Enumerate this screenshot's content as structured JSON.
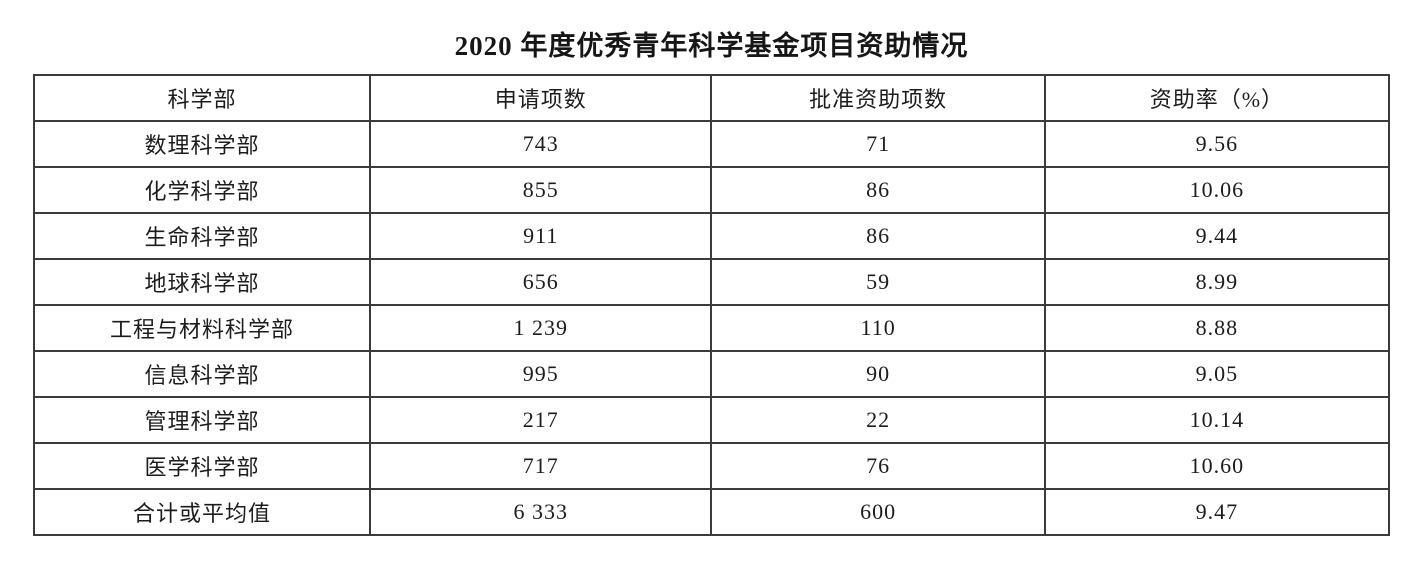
{
  "title": "2020 年度优秀青年科学基金项目资助情况",
  "chart_data": {
    "type": "table",
    "title": "2020 年度优秀青年科学基金项目资助情况",
    "columns": [
      "科学部",
      "申请项数",
      "批准资助项数",
      "资助率（%）"
    ],
    "rows": [
      [
        "数理科学部",
        "743",
        "71",
        "9.56"
      ],
      [
        "化学科学部",
        "855",
        "86",
        "10.06"
      ],
      [
        "生命科学部",
        "911",
        "86",
        "9.44"
      ],
      [
        "地球科学部",
        "656",
        "59",
        "8.99"
      ],
      [
        "工程与材料科学部",
        "1 239",
        "110",
        "8.88"
      ],
      [
        "信息科学部",
        "995",
        "90",
        "9.05"
      ],
      [
        "管理科学部",
        "217",
        "22",
        "10.14"
      ],
      [
        "医学科学部",
        "717",
        "76",
        "10.60"
      ],
      [
        "合计或平均值",
        "6 333",
        "600",
        "9.47"
      ]
    ],
    "summary_row_index": 8,
    "summary_bold_columns": [
      1,
      2
    ],
    "numeric_values": {
      "applications": [
        743,
        855,
        911,
        656,
        1239,
        995,
        217,
        717
      ],
      "approved": [
        71,
        86,
        86,
        59,
        110,
        90,
        22,
        76
      ],
      "rate_percent": [
        9.56,
        10.06,
        9.44,
        8.99,
        8.88,
        9.05,
        10.14,
        10.6
      ],
      "total_applications": 6333,
      "total_approved": 600,
      "average_rate_percent": 9.47
    }
  },
  "colors": {
    "background": "#ffffff",
    "border": "#3b3b3b",
    "text": "#1c1c1c"
  }
}
